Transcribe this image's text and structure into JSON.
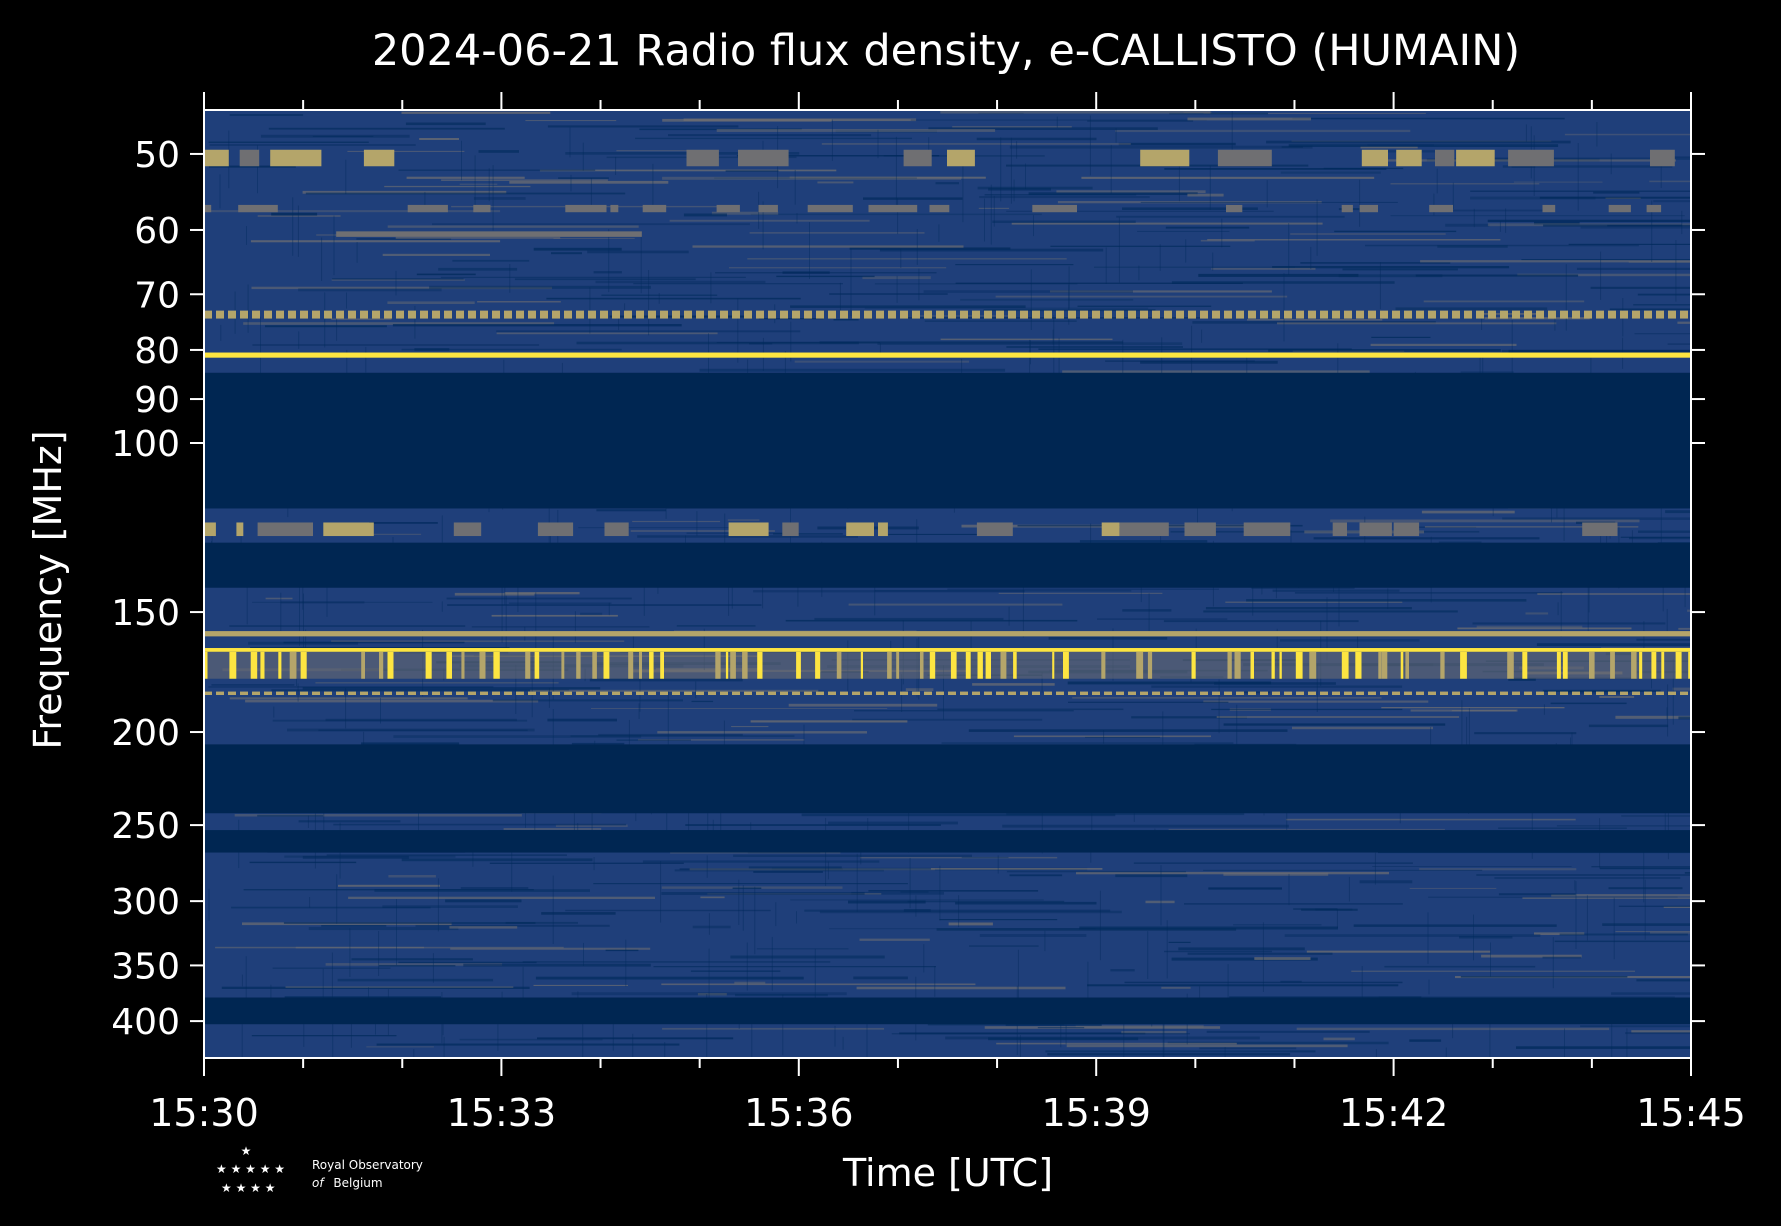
{
  "chart_data": {
    "type": "heatmap",
    "title": "2024-06-21 Radio flux density, e-CALLISTO (HUMAIN)",
    "xlabel": "Time [UTC]",
    "ylabel": "Frequency [MHz]",
    "x_range": [
      "15:30",
      "15:45"
    ],
    "x_ticks": [
      "15:30",
      "15:33",
      "15:36",
      "15:39",
      "15:42",
      "15:45"
    ],
    "y_scale": "log",
    "y_range": [
      45,
      437
    ],
    "y_ticks": [
      50,
      60,
      70,
      80,
      90,
      100,
      150,
      200,
      250,
      300,
      350,
      400
    ],
    "colormap": [
      "#002a5c",
      "#1f3f7a",
      "#6f6f72",
      "#b4a56a",
      "#fde541"
    ],
    "no_data_color": "#002652",
    "bands": [
      {
        "f_low": 49.5,
        "f_high": 51.5,
        "level": "high",
        "pattern": "intermittent"
      },
      {
        "f_low": 56.5,
        "f_high": 57.5,
        "level": "medium",
        "pattern": "intermittent"
      },
      {
        "f_low": 60.2,
        "f_high": 61.0,
        "level": "medium",
        "t_start": "15:31:20",
        "t_end": "15:34:25"
      },
      {
        "f_low": 72.8,
        "f_high": 74.2,
        "level": "high",
        "pattern": "dashed"
      },
      {
        "f_low": 80.5,
        "f_high": 81.5,
        "level": "very_high",
        "pattern": "continuous"
      },
      {
        "f_low": 84.5,
        "f_high": 117.0,
        "level": "no_data"
      },
      {
        "f_low": 121.0,
        "f_high": 125.0,
        "level": "high",
        "pattern": "intermittent"
      },
      {
        "f_low": 127.0,
        "f_high": 141.5,
        "level": "no_data"
      },
      {
        "f_low": 157.0,
        "f_high": 159.0,
        "level": "high",
        "pattern": "continuous"
      },
      {
        "f_low": 163.5,
        "f_high": 165.0,
        "level": "very_high",
        "pattern": "continuous"
      },
      {
        "f_low": 165.0,
        "f_high": 176.0,
        "level": "high",
        "pattern": "bursty"
      },
      {
        "f_low": 181.5,
        "f_high": 183.0,
        "level": "high",
        "pattern": "dashed"
      },
      {
        "f_low": 206.0,
        "f_high": 243.0,
        "level": "no_data"
      },
      {
        "f_low": 253.0,
        "f_high": 267.0,
        "level": "no_data"
      },
      {
        "f_low": 378.0,
        "f_high": 403.0,
        "level": "no_data"
      }
    ]
  },
  "logo": {
    "line1": "Royal Observatory",
    "line2_prefix": "of",
    "line2": "Belgium"
  }
}
